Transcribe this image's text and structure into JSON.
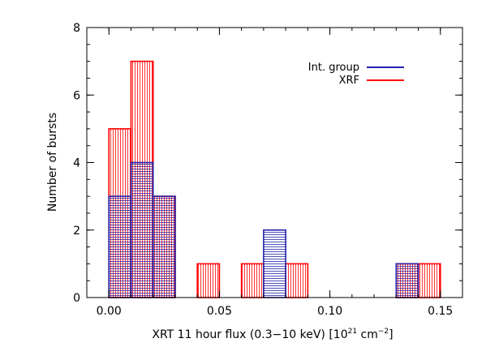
{
  "chart_data": {
    "type": "bar",
    "subtype": "overlaid-histogram",
    "title": "",
    "xlabel": "XRT 11 hour flux (0.3−10 keV) [10",
    "xlabel_sup": "21",
    "xlabel_tail": " cm",
    "xlabel_sup2": "−2",
    "xlabel_end": "]",
    "ylabel": "Number of bursts",
    "xlim": [
      -0.01,
      0.16
    ],
    "ylim": [
      0,
      8
    ],
    "bin_width": 0.01,
    "xticks": [
      0.0,
      0.05,
      0.1,
      0.15
    ],
    "xtick_labels": [
      "0.00",
      "0.05",
      "0.10",
      "0.15"
    ],
    "yticks": [
      0,
      2,
      4,
      6,
      8
    ],
    "ytick_labels": [
      "0",
      "2",
      "4",
      "6",
      "8"
    ],
    "grid": false,
    "legend_position": "top-right",
    "series": [
      {
        "name": "XRF",
        "color": "#ff0000",
        "hatch": "vertical",
        "bins": [
          {
            "x0": 0.0,
            "x1": 0.01,
            "count": 5
          },
          {
            "x0": 0.01,
            "x1": 0.02,
            "count": 7
          },
          {
            "x0": 0.02,
            "x1": 0.03,
            "count": 3
          },
          {
            "x0": 0.04,
            "x1": 0.05,
            "count": 1
          },
          {
            "x0": 0.06,
            "x1": 0.07,
            "count": 1
          },
          {
            "x0": 0.08,
            "x1": 0.09,
            "count": 1
          },
          {
            "x0": 0.13,
            "x1": 0.14,
            "count": 1
          },
          {
            "x0": 0.14,
            "x1": 0.15,
            "count": 1
          }
        ]
      },
      {
        "name": "Int. group",
        "color": "#2222aa",
        "hatch": "horizontal",
        "bins": [
          {
            "x0": 0.0,
            "x1": 0.01,
            "count": 3
          },
          {
            "x0": 0.01,
            "x1": 0.02,
            "count": 4
          },
          {
            "x0": 0.02,
            "x1": 0.03,
            "count": 3
          },
          {
            "x0": 0.07,
            "x1": 0.08,
            "count": 2
          },
          {
            "x0": 0.13,
            "x1": 0.14,
            "count": 1
          }
        ]
      }
    ]
  }
}
